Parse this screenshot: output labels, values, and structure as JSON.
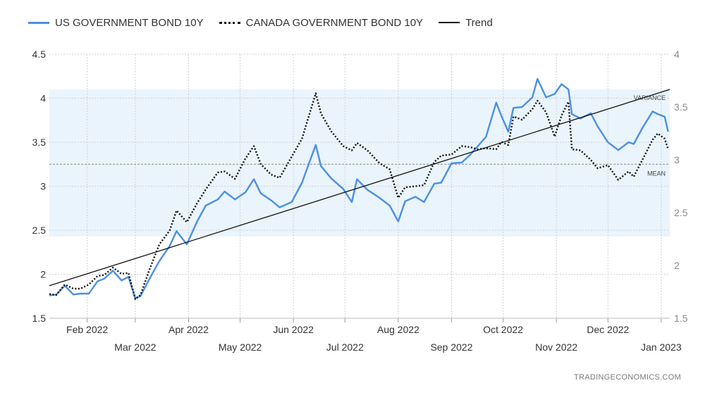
{
  "legend": {
    "us": "US GOVERNMENT BOND 10Y",
    "canada": "CANADA GOVERNMENT BOND 10Y",
    "trend": "Trend"
  },
  "watermark": "TRADINGECONOMICS.COM",
  "chart_data": {
    "type": "line",
    "title": "",
    "xlabel": "",
    "ylabel": "",
    "x_range": [
      "2022-01-10",
      "2023-01-06"
    ],
    "ylim_left": [
      1.5,
      4.5
    ],
    "ylim_right": [
      1.5,
      4
    ],
    "yticks_left": [
      "1.5",
      "2",
      "2.5",
      "3",
      "3.5",
      "4",
      "4.5"
    ],
    "yticks_right": [
      "1.5",
      "2",
      "2.5",
      "3",
      "3.5",
      "4"
    ],
    "xticks": [
      {
        "date": "2022-02-01",
        "label": "Feb 2022"
      },
      {
        "date": "2022-03-01",
        "label": "Mar 2022"
      },
      {
        "date": "2022-04-01",
        "label": "Apr 2022"
      },
      {
        "date": "2022-05-01",
        "label": "May 2022"
      },
      {
        "date": "2022-06-01",
        "label": "Jun 2022"
      },
      {
        "date": "2022-07-01",
        "label": "Jul 2022"
      },
      {
        "date": "2022-08-01",
        "label": "Aug 2022"
      },
      {
        "date": "2022-09-01",
        "label": "Sep 2022"
      },
      {
        "date": "2022-10-01",
        "label": "Oct 2022"
      },
      {
        "date": "2022-11-01",
        "label": "Nov 2022"
      },
      {
        "date": "2022-12-01",
        "label": "Dec 2022"
      },
      {
        "date": "2023-01-01",
        "label": "Jan 2023"
      }
    ],
    "grid": true,
    "legend_position": "top-left",
    "variance_band": {
      "low": 2.43,
      "high": 4.1,
      "axis": "left",
      "label": "VARIANCE",
      "color": "#eaf4fc"
    },
    "mean": {
      "value": 3.25,
      "axis": "left",
      "label": "MEAN"
    },
    "series": [
      {
        "name": "US GOVERNMENT BOND 10Y",
        "axis": "left",
        "color": "#4a90e2",
        "points": [
          [
            "2022-01-10",
            1.76
          ],
          [
            "2022-01-14",
            1.77
          ],
          [
            "2022-01-19",
            1.87
          ],
          [
            "2022-01-24",
            1.77
          ],
          [
            "2022-01-28",
            1.78
          ],
          [
            "2022-02-02",
            1.78
          ],
          [
            "2022-02-07",
            1.92
          ],
          [
            "2022-02-11",
            1.95
          ],
          [
            "2022-02-16",
            2.04
          ],
          [
            "2022-02-21",
            1.93
          ],
          [
            "2022-02-25",
            1.97
          ],
          [
            "2022-03-01",
            1.73
          ],
          [
            "2022-03-04",
            1.75
          ],
          [
            "2022-03-09",
            1.94
          ],
          [
            "2022-03-15",
            2.15
          ],
          [
            "2022-03-21",
            2.32
          ],
          [
            "2022-03-25",
            2.49
          ],
          [
            "2022-03-31",
            2.34
          ],
          [
            "2022-04-06",
            2.6
          ],
          [
            "2022-04-11",
            2.78
          ],
          [
            "2022-04-18",
            2.85
          ],
          [
            "2022-04-22",
            2.94
          ],
          [
            "2022-04-28",
            2.85
          ],
          [
            "2022-05-04",
            2.93
          ],
          [
            "2022-05-09",
            3.08
          ],
          [
            "2022-05-13",
            2.92
          ],
          [
            "2022-05-19",
            2.84
          ],
          [
            "2022-05-24",
            2.76
          ],
          [
            "2022-05-31",
            2.82
          ],
          [
            "2022-06-06",
            3.04
          ],
          [
            "2022-06-14",
            3.47
          ],
          [
            "2022-06-17",
            3.23
          ],
          [
            "2022-06-23",
            3.09
          ],
          [
            "2022-06-30",
            2.97
          ],
          [
            "2022-07-05",
            2.82
          ],
          [
            "2022-07-08",
            3.08
          ],
          [
            "2022-07-14",
            2.96
          ],
          [
            "2022-07-21",
            2.87
          ],
          [
            "2022-07-27",
            2.78
          ],
          [
            "2022-08-01",
            2.6
          ],
          [
            "2022-08-05",
            2.83
          ],
          [
            "2022-08-11",
            2.88
          ],
          [
            "2022-08-16",
            2.82
          ],
          [
            "2022-08-22",
            3.03
          ],
          [
            "2022-08-26",
            3.04
          ],
          [
            "2022-09-01",
            3.26
          ],
          [
            "2022-09-07",
            3.27
          ],
          [
            "2022-09-12",
            3.36
          ],
          [
            "2022-09-16",
            3.45
          ],
          [
            "2022-09-21",
            3.56
          ],
          [
            "2022-09-27",
            3.95
          ],
          [
            "2022-09-30",
            3.8
          ],
          [
            "2022-10-04",
            3.62
          ],
          [
            "2022-10-07",
            3.89
          ],
          [
            "2022-10-12",
            3.9
          ],
          [
            "2022-10-18",
            4.01
          ],
          [
            "2022-10-21",
            4.22
          ],
          [
            "2022-10-26",
            4.01
          ],
          [
            "2022-10-31",
            4.05
          ],
          [
            "2022-11-04",
            4.16
          ],
          [
            "2022-11-08",
            4.1
          ],
          [
            "2022-11-10",
            3.82
          ],
          [
            "2022-11-15",
            3.77
          ],
          [
            "2022-11-21",
            3.83
          ],
          [
            "2022-11-25",
            3.68
          ],
          [
            "2022-12-01",
            3.5
          ],
          [
            "2022-12-07",
            3.41
          ],
          [
            "2022-12-13",
            3.5
          ],
          [
            "2022-12-16",
            3.48
          ],
          [
            "2022-12-21",
            3.66
          ],
          [
            "2022-12-27",
            3.85
          ],
          [
            "2022-12-30",
            3.82
          ],
          [
            "2023-01-03",
            3.79
          ],
          [
            "2023-01-05",
            3.62
          ]
        ]
      },
      {
        "name": "CANADA GOVERNMENT BOND 10Y",
        "axis": "right",
        "color": "#111111",
        "points": [
          [
            "2022-01-10",
            1.73
          ],
          [
            "2022-01-14",
            1.72
          ],
          [
            "2022-01-19",
            1.82
          ],
          [
            "2022-01-24",
            1.78
          ],
          [
            "2022-01-28",
            1.78
          ],
          [
            "2022-02-02",
            1.82
          ],
          [
            "2022-02-07",
            1.9
          ],
          [
            "2022-02-11",
            1.91
          ],
          [
            "2022-02-16",
            1.98
          ],
          [
            "2022-02-21",
            1.92
          ],
          [
            "2022-02-25",
            1.93
          ],
          [
            "2022-03-01",
            1.68
          ],
          [
            "2022-03-04",
            1.72
          ],
          [
            "2022-03-09",
            1.95
          ],
          [
            "2022-03-15",
            2.2
          ],
          [
            "2022-03-21",
            2.33
          ],
          [
            "2022-03-25",
            2.52
          ],
          [
            "2022-03-31",
            2.41
          ],
          [
            "2022-04-06",
            2.59
          ],
          [
            "2022-04-11",
            2.72
          ],
          [
            "2022-04-18",
            2.88
          ],
          [
            "2022-04-22",
            2.89
          ],
          [
            "2022-04-28",
            2.82
          ],
          [
            "2022-05-04",
            3.01
          ],
          [
            "2022-05-09",
            3.13
          ],
          [
            "2022-05-13",
            2.96
          ],
          [
            "2022-05-19",
            2.86
          ],
          [
            "2022-05-24",
            2.83
          ],
          [
            "2022-05-31",
            3.03
          ],
          [
            "2022-06-06",
            3.2
          ],
          [
            "2022-06-14",
            3.63
          ],
          [
            "2022-06-17",
            3.44
          ],
          [
            "2022-06-23",
            3.27
          ],
          [
            "2022-06-30",
            3.13
          ],
          [
            "2022-07-05",
            3.09
          ],
          [
            "2022-07-08",
            3.16
          ],
          [
            "2022-07-14",
            3.09
          ],
          [
            "2022-07-21",
            2.97
          ],
          [
            "2022-07-27",
            2.91
          ],
          [
            "2022-08-01",
            2.64
          ],
          [
            "2022-08-05",
            2.74
          ],
          [
            "2022-08-11",
            2.75
          ],
          [
            "2022-08-16",
            2.76
          ],
          [
            "2022-08-22",
            2.98
          ],
          [
            "2022-08-26",
            3.04
          ],
          [
            "2022-09-01",
            3.05
          ],
          [
            "2022-09-07",
            3.13
          ],
          [
            "2022-09-12",
            3.12
          ],
          [
            "2022-09-16",
            3.1
          ],
          [
            "2022-09-21",
            3.11
          ],
          [
            "2022-09-27",
            3.1
          ],
          [
            "2022-09-30",
            3.17
          ],
          [
            "2022-10-04",
            3.14
          ],
          [
            "2022-10-07",
            3.41
          ],
          [
            "2022-10-12",
            3.38
          ],
          [
            "2022-10-18",
            3.48
          ],
          [
            "2022-10-21",
            3.56
          ],
          [
            "2022-10-26",
            3.45
          ],
          [
            "2022-10-31",
            3.22
          ],
          [
            "2022-11-04",
            3.42
          ],
          [
            "2022-11-08",
            3.55
          ],
          [
            "2022-11-10",
            3.1
          ],
          [
            "2022-11-15",
            3.09
          ],
          [
            "2022-11-21",
            3.0
          ],
          [
            "2022-11-25",
            2.92
          ],
          [
            "2022-12-01",
            2.95
          ],
          [
            "2022-12-07",
            2.81
          ],
          [
            "2022-12-13",
            2.89
          ],
          [
            "2022-12-16",
            2.84
          ],
          [
            "2022-12-21",
            3.0
          ],
          [
            "2022-12-27",
            3.19
          ],
          [
            "2022-12-30",
            3.25
          ],
          [
            "2023-01-03",
            3.2
          ],
          [
            "2023-01-05",
            3.1
          ]
        ]
      },
      {
        "name": "Trend",
        "axis": "left",
        "color": "#111111",
        "points": [
          [
            "2022-01-10",
            1.87
          ],
          [
            "2023-01-06",
            4.1
          ]
        ]
      }
    ]
  }
}
